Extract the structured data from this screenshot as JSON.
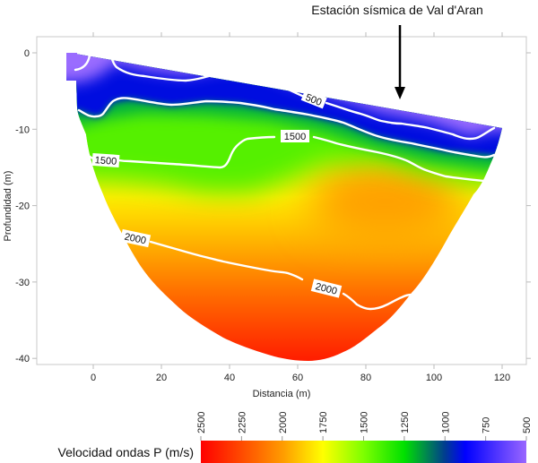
{
  "chart_data": {
    "type": "heatmap",
    "title": "",
    "annotation": "Estación sísmica de Val d'Aran",
    "annotation_x": 90,
    "xlabel": "Distancia (m)",
    "ylabel": "Profundidad (m)",
    "xlim": [
      -16,
      127
    ],
    "ylim": [
      -41,
      2
    ],
    "xticks": [
      0,
      20,
      40,
      60,
      80,
      100,
      120
    ],
    "yticks": [
      0,
      -10,
      -20,
      -30,
      -40
    ],
    "contour_labels": [
      {
        "value": "500"
      },
      {
        "value": "1500"
      },
      {
        "value": "1500"
      },
      {
        "value": "2000"
      },
      {
        "value": "2000"
      }
    ],
    "colorbar": {
      "title": "Velocidad ondas P (m/s)",
      "ticks": [
        2500,
        2250,
        2000,
        1750,
        1500,
        1250,
        1000,
        750,
        500
      ],
      "range": [
        2500,
        500
      ],
      "colors": [
        {
          "value": 2500,
          "color": "#ff0000"
        },
        {
          "value": 2250,
          "color": "#ff4a00"
        },
        {
          "value": 2000,
          "color": "#ff9a00"
        },
        {
          "value": 1750,
          "color": "#ffff00"
        },
        {
          "value": 1500,
          "color": "#7dff00"
        },
        {
          "value": 1250,
          "color": "#00e000"
        },
        {
          "value": 1000,
          "color": "#003c90"
        },
        {
          "value": 875,
          "color": "#0000ff"
        },
        {
          "value": 500,
          "color": "#9966ff"
        }
      ]
    },
    "grid": false
  }
}
